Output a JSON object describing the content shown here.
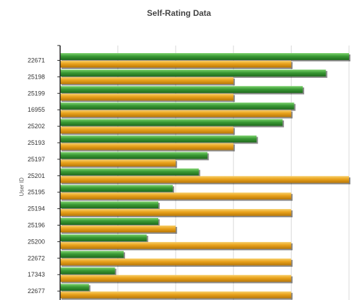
{
  "chart_data": {
    "type": "bar",
    "orientation": "horizontal",
    "title": "Self-Rating Data",
    "ylabel": "User ID",
    "xlabel": "",
    "categories": [
      "22671",
      "25198",
      "25199",
      "16955",
      "25202",
      "25193",
      "25197",
      "25201",
      "25195",
      "25194",
      "25196",
      "25200",
      "22672",
      "17343",
      "22677"
    ],
    "xlim": [
      0,
      5
    ],
    "grid": true,
    "series": [
      {
        "color": "#3a9a35",
        "values": [
          5.0,
          4.6,
          4.2,
          4.05,
          3.85,
          3.4,
          2.55,
          2.4,
          1.95,
          1.7,
          1.7,
          1.5,
          1.1,
          0.95,
          0.5
        ]
      },
      {
        "color": "#e9a21b",
        "values": [
          4.0,
          3.0,
          3.0,
          4.0,
          3.0,
          3.0,
          2.0,
          5.0,
          4.0,
          4.0,
          2.0,
          4.0,
          4.0,
          4.0,
          4.0
        ]
      }
    ]
  }
}
